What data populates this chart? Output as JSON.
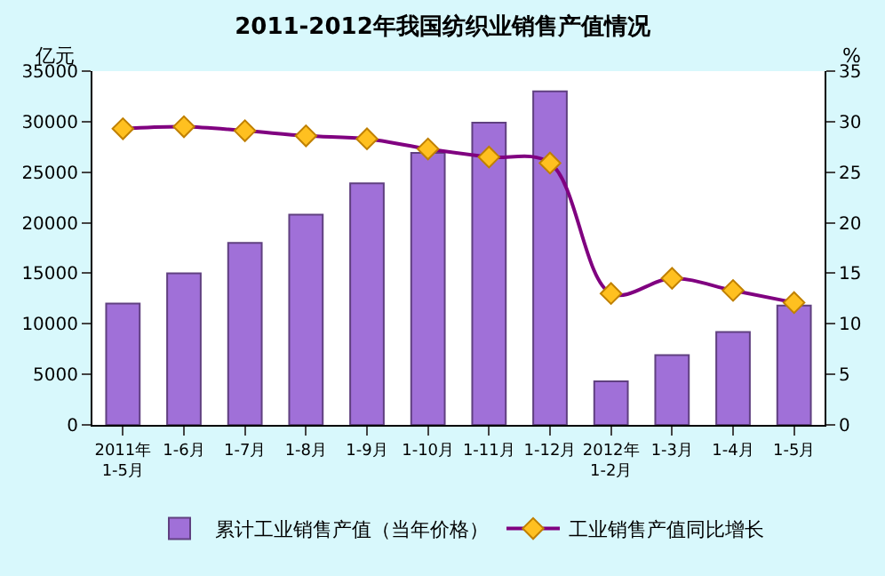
{
  "chart_data": {
    "type": "bar",
    "title": "2011-2012年我国纺织业销售产值情况",
    "categories": [
      "2011年\n1-5月",
      "1-6月",
      "1-7月",
      "1-8月",
      "1-9月",
      "1-10月",
      "1-11月",
      "1-12月",
      "2012年\n1-2月",
      "1-3月",
      "1-4月",
      "1-5月"
    ],
    "series": [
      {
        "name": "累计工业销售产值（当年价格）",
        "color": "#a070d8",
        "values": [
          12000,
          15000,
          18000,
          20800,
          23900,
          26900,
          29900,
          33000,
          4300,
          6900,
          9200,
          11800
        ]
      },
      {
        "name": "工业销售产值同比增长",
        "type": "line",
        "axis": "y2",
        "color": "#800080",
        "marker": "diamond",
        "values": [
          29.3,
          29.5,
          29.1,
          28.6,
          28.3,
          27.3,
          26.5,
          25.9,
          13.0,
          14.5,
          13.3,
          12.1
        ]
      }
    ],
    "ylabel": "亿元",
    "y2label": "%",
    "ylim": [
      0,
      35000
    ],
    "yticks": [
      0,
      5000,
      10000,
      15000,
      20000,
      25000,
      30000,
      35000
    ],
    "y2lim": [
      0,
      35
    ],
    "y2ticks": [
      0,
      5,
      10,
      15,
      20,
      25,
      30,
      35
    ],
    "legend": "bottom"
  }
}
